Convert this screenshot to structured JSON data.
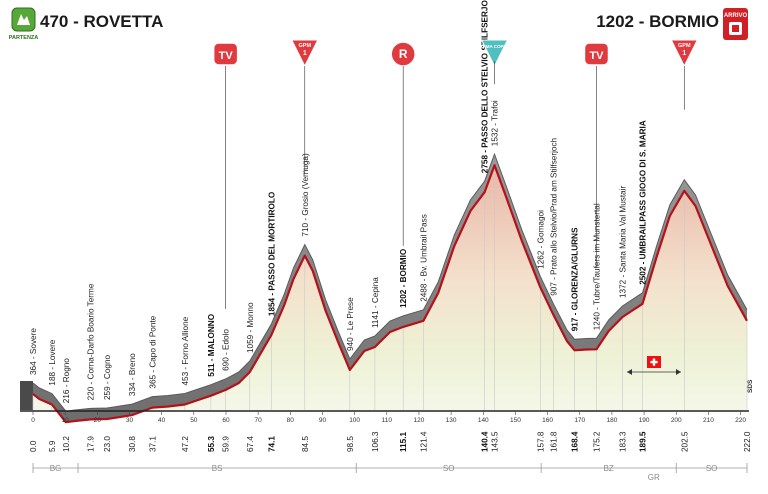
{
  "chart_data": {
    "type": "area",
    "title": "",
    "start": {
      "altitude_label": "470 - ROVETTA",
      "badge": "PARTENZA"
    },
    "finish": {
      "altitude_label": "1202 - BORMIO",
      "badge": "ARRIVO"
    },
    "xlim": [
      0,
      222
    ],
    "x_ticks": [
      0,
      10,
      20,
      30,
      40,
      50,
      60,
      70,
      80,
      90,
      100,
      110,
      120,
      130,
      140,
      150,
      160,
      170,
      180,
      190,
      200,
      210,
      220
    ],
    "ylim": [
      200,
      2700
    ],
    "profile": [
      {
        "x": 0,
        "y": 470
      },
      {
        "x": 2,
        "y": 420
      },
      {
        "x": 5.9,
        "y": 364
      },
      {
        "x": 10.2,
        "y": 188
      },
      {
        "x": 13,
        "y": 200
      },
      {
        "x": 17.9,
        "y": 216
      },
      {
        "x": 23,
        "y": 220
      },
      {
        "x": 30.8,
        "y": 259
      },
      {
        "x": 37.1,
        "y": 334
      },
      {
        "x": 42,
        "y": 345
      },
      {
        "x": 47.2,
        "y": 365
      },
      {
        "x": 55.3,
        "y": 453
      },
      {
        "x": 59.9,
        "y": 511
      },
      {
        "x": 64,
        "y": 580
      },
      {
        "x": 67.4,
        "y": 690
      },
      {
        "x": 74.1,
        "y": 1059
      },
      {
        "x": 78,
        "y": 1350
      },
      {
        "x": 81,
        "y": 1620
      },
      {
        "x": 84.5,
        "y": 1854
      },
      {
        "x": 87,
        "y": 1700
      },
      {
        "x": 91,
        "y": 1300
      },
      {
        "x": 95,
        "y": 980
      },
      {
        "x": 98.5,
        "y": 710
      },
      {
        "x": 103,
        "y": 900
      },
      {
        "x": 106.3,
        "y": 940
      },
      {
        "x": 111,
        "y": 1090
      },
      {
        "x": 115.1,
        "y": 1141
      },
      {
        "x": 121.4,
        "y": 1202
      },
      {
        "x": 126,
        "y": 1480
      },
      {
        "x": 131,
        "y": 1950
      },
      {
        "x": 136,
        "y": 2300
      },
      {
        "x": 140.4,
        "y": 2488
      },
      {
        "x": 143.5,
        "y": 2758
      },
      {
        "x": 147,
        "y": 2450
      },
      {
        "x": 152,
        "y": 2000
      },
      {
        "x": 157.8,
        "y": 1532
      },
      {
        "x": 161.8,
        "y": 1262
      },
      {
        "x": 166,
        "y": 1000
      },
      {
        "x": 168.4,
        "y": 907
      },
      {
        "x": 172,
        "y": 915
      },
      {
        "x": 175.2,
        "y": 917
      },
      {
        "x": 179,
        "y": 1100
      },
      {
        "x": 183.3,
        "y": 1240
      },
      {
        "x": 189.5,
        "y": 1372
      },
      {
        "x": 194,
        "y": 1850
      },
      {
        "x": 198,
        "y": 2250
      },
      {
        "x": 202.5,
        "y": 2502
      },
      {
        "x": 206,
        "y": 2350
      },
      {
        "x": 211,
        "y": 1950
      },
      {
        "x": 216,
        "y": 1550
      },
      {
        "x": 222,
        "y": 1202
      }
    ],
    "waypoints": [
      {
        "km": "0.0",
        "label": "364 - Sovere",
        "bold": false
      },
      {
        "km": "5.9",
        "label": "188 - Lovere",
        "bold": false
      },
      {
        "km": "10.2",
        "label": "216 - Rogno",
        "bold": false
      },
      {
        "km": "17.9",
        "label": "220 - Corna-Darfo Boario Terme",
        "bold": false
      },
      {
        "km": "23.0",
        "label": "259 - Cogno",
        "bold": false
      },
      {
        "km": "30.8",
        "label": "334 - Breno",
        "bold": false
      },
      {
        "km": "37.1",
        "label": "365 - Capo di Ponte",
        "bold": false
      },
      {
        "km": "47.2",
        "label": "453 - Forno Allione",
        "bold": false
      },
      {
        "km": "55.3",
        "label": "511 - MALONNO",
        "bold": true
      },
      {
        "km": "59.9",
        "label": "690 - Edolo",
        "bold": false
      },
      {
        "km": "67.4",
        "label": "1059 - Monno",
        "bold": false
      },
      {
        "km": "74.1",
        "label": "1854 - PASSO DEL MORTIROLO",
        "bold": true
      },
      {
        "km": "84.5",
        "label": "710 - Grosio (Vernuga)",
        "bold": false
      },
      {
        "km": "98.5",
        "label": "940 - Le Prese",
        "bold": false
      },
      {
        "km": "106.3",
        "label": "1141 - Cepina",
        "bold": false
      },
      {
        "km": "115.1",
        "label": "1202 - BORMIO",
        "bold": true
      },
      {
        "km": "121.4",
        "label": "2488 - Bv. Umbrail Pass",
        "bold": false
      },
      {
        "km": "140.4",
        "label": "2758 - PASSO DELLO STELVIO STILFSERJOCH",
        "bold": true
      },
      {
        "km": "143.5",
        "label": "1532 - Trafoi",
        "bold": false
      },
      {
        "km": "157.8",
        "label": "1262 - Gomagoi",
        "bold": false
      },
      {
        "km": "161.8",
        "label": "907 - Prato allo Stelvio/Prad am Stilfserjoch",
        "bold": false
      },
      {
        "km": "168.4",
        "label": "917 - GLORENZA/GLURNS",
        "bold": true
      },
      {
        "km": "175.2",
        "label": "1240 - Tubre/Taufers im Munstertal",
        "bold": false
      },
      {
        "km": "183.3",
        "label": "1372 - Santa Maria Val Mustair",
        "bold": false
      },
      {
        "km": "189.5",
        "label": "2502 - UMBRAILPASS GIOGO DI S. MARIA",
        "bold": true
      },
      {
        "km": "202.5",
        "label": "",
        "bold": false
      },
      {
        "km": "222.0",
        "label": "",
        "bold": false
      }
    ],
    "markers": [
      {
        "type": "TV",
        "text": "TV"
      },
      {
        "type": "GPM",
        "text": "GPM",
        "sub": "1"
      },
      {
        "type": "R",
        "text": "R"
      },
      {
        "type": "CIMA_COPPI",
        "text": "CIMA COPPI"
      },
      {
        "type": "TV",
        "text": "TV"
      },
      {
        "type": "GPM",
        "text": "GPM",
        "sub": "1"
      }
    ],
    "regions": [
      "BG",
      "BS",
      "SO",
      "BZ",
      "CH",
      "GR",
      "SO"
    ],
    "sds": "SDS",
    "colors": {
      "profile_band": "#8c8c8c",
      "outline": "#b4121b",
      "marker_red": "#e03a3e",
      "cima_coppi": "#4fc0bf",
      "start_badge": "#56a838",
      "finish_badge": "#d11f26"
    }
  }
}
